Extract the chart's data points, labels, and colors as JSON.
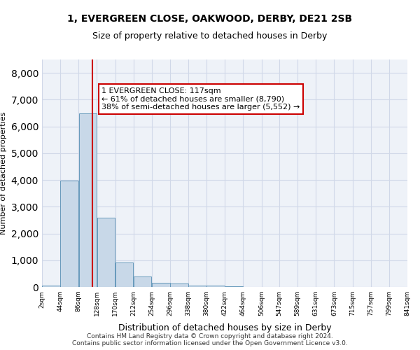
{
  "title1": "1, EVERGREEN CLOSE, OAKWOOD, DERBY, DE21 2SB",
  "title2": "Size of property relative to detached houses in Derby",
  "xlabel": "Distribution of detached houses by size in Derby",
  "ylabel": "Number of detached properties",
  "bin_edges": [
    2,
    44,
    86,
    128,
    170,
    212,
    254,
    296,
    338,
    380,
    422,
    464,
    506,
    547,
    589,
    631,
    673,
    715,
    757,
    799,
    841
  ],
  "bar_heights": [
    50,
    3980,
    6480,
    2580,
    920,
    390,
    160,
    120,
    60,
    50,
    30,
    0,
    0,
    0,
    0,
    0,
    0,
    0,
    0,
    0
  ],
  "bar_color": "#c8d8e8",
  "bar_edgecolor": "#6699bb",
  "property_size": 117,
  "annotation_title": "1 EVERGREEN CLOSE: 117sqm",
  "annotation_line1": "← 61% of detached houses are smaller (8,790)",
  "annotation_line2": "38% of semi-detached houses are larger (5,552) →",
  "vline_color": "#cc0000",
  "annotation_box_edgecolor": "#cc0000",
  "ylim": [
    0,
    8500
  ],
  "yticks": [
    0,
    1000,
    2000,
    3000,
    4000,
    5000,
    6000,
    7000,
    8000
  ],
  "grid_color": "#d0d8e8",
  "bg_color": "#eef2f8",
  "footer1": "Contains HM Land Registry data © Crown copyright and database right 2024.",
  "footer2": "Contains public sector information licensed under the Open Government Licence v3.0.",
  "tick_labels": [
    "2sqm",
    "44sqm",
    "86sqm",
    "128sqm",
    "170sqm",
    "212sqm",
    "254sqm",
    "296sqm",
    "338sqm",
    "380sqm",
    "422sqm",
    "464sqm",
    "506sqm",
    "547sqm",
    "589sqm",
    "631sqm",
    "673sqm",
    "715sqm",
    "757sqm",
    "799sqm",
    "841sqm"
  ]
}
